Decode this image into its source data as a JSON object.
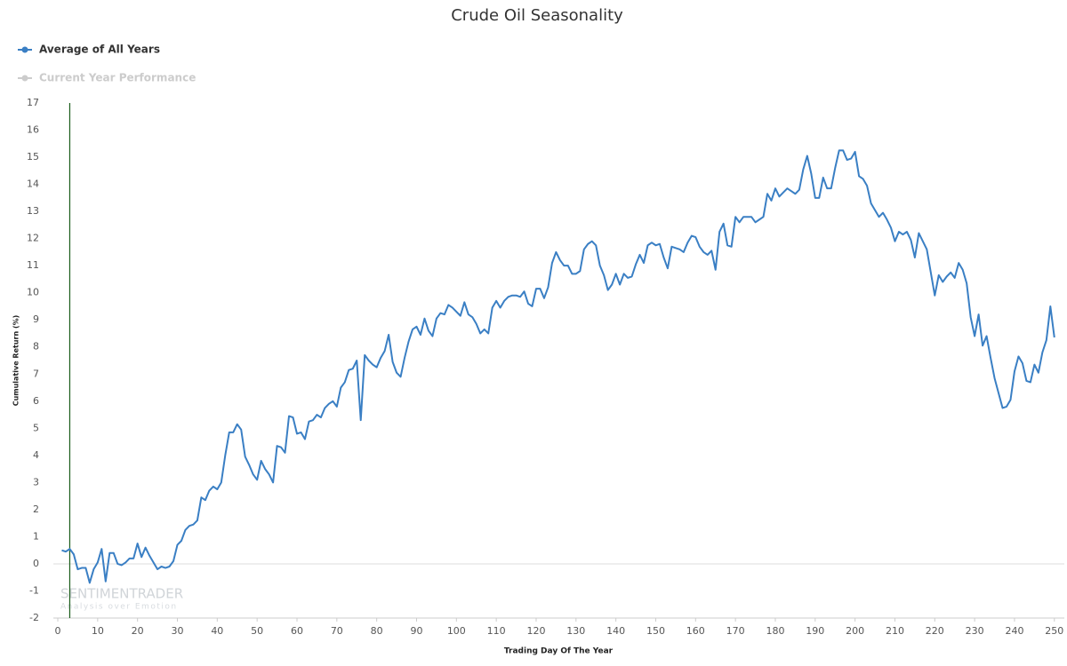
{
  "chart_data": {
    "type": "line",
    "title": "Crude Oil Seasonality",
    "xlabel": "Trading Day Of The Year",
    "ylabel": "Cumulative Return (%)",
    "watermark": "SENTIMENTRADER",
    "watermark_sub": "Analysis over Emotion",
    "legend_position": "top-left",
    "inactive_series": [
      {
        "name": "Current Year Performance",
        "color": "#cccccc"
      }
    ],
    "vline_x": 3,
    "vline_color": "#1a5c1a",
    "xlim": [
      0,
      252.5
    ],
    "ylim": [
      -2,
      17
    ],
    "xticks": [
      0,
      10,
      20,
      30,
      40,
      50,
      60,
      70,
      80,
      90,
      100,
      110,
      120,
      130,
      140,
      150,
      160,
      170,
      180,
      190,
      200,
      210,
      220,
      230,
      240,
      250
    ],
    "yticks": [
      -2,
      -1,
      0,
      1,
      2,
      3,
      4,
      5,
      6,
      7,
      8,
      9,
      10,
      11,
      12,
      13,
      14,
      15,
      16,
      17
    ],
    "x": [
      1,
      2,
      3,
      4,
      5,
      6,
      7,
      8,
      9,
      10,
      11,
      12,
      13,
      14,
      15,
      16,
      17,
      18,
      19,
      20,
      21,
      22,
      23,
      24,
      25,
      26,
      27,
      28,
      29,
      30,
      31,
      32,
      33,
      34,
      35,
      36,
      37,
      38,
      39,
      40,
      41,
      42,
      43,
      44,
      45,
      46,
      47,
      48,
      49,
      50,
      51,
      52,
      53,
      54,
      55,
      56,
      57,
      58,
      59,
      60,
      61,
      62,
      63,
      64,
      65,
      66,
      67,
      68,
      69,
      70,
      71,
      72,
      73,
      74,
      75,
      76,
      77,
      78,
      79,
      80,
      81,
      82,
      83,
      84,
      85,
      86,
      87,
      88,
      89,
      90,
      91,
      92,
      93,
      94,
      95,
      96,
      97,
      98,
      99,
      100,
      101,
      102,
      103,
      104,
      105,
      106,
      107,
      108,
      109,
      110,
      111,
      112,
      113,
      114,
      115,
      116,
      117,
      118,
      119,
      120,
      121,
      122,
      123,
      124,
      125,
      126,
      127,
      128,
      129,
      130,
      131,
      132,
      133,
      134,
      135,
      136,
      137,
      138,
      139,
      140,
      141,
      142,
      143,
      144,
      145,
      146,
      147,
      148,
      149,
      150,
      151,
      152,
      153,
      154,
      155,
      156,
      157,
      158,
      159,
      160,
      161,
      162,
      163,
      164,
      165,
      166,
      167,
      168,
      169,
      170,
      171,
      172,
      173,
      174,
      175,
      176,
      177,
      178,
      179,
      180,
      181,
      182,
      183,
      184,
      185,
      186,
      187,
      188,
      189,
      190,
      191,
      192,
      193,
      194,
      195,
      196,
      197,
      198,
      199,
      200,
      201,
      202,
      203,
      204,
      205,
      206,
      207,
      208,
      209,
      210,
      211,
      212,
      213,
      214,
      215,
      216,
      217,
      218,
      219,
      220,
      221,
      222,
      223,
      224,
      225,
      226,
      227,
      228,
      229,
      230,
      231,
      232,
      233,
      234,
      235,
      236,
      237,
      238,
      239,
      240,
      241,
      242,
      243,
      244,
      245,
      246,
      247,
      248,
      249,
      250
    ],
    "series": [
      {
        "name": "Average of All Years",
        "color": "#3a7fc4",
        "values": [
          0.5,
          0.45,
          0.55,
          0.35,
          -0.2,
          -0.15,
          -0.15,
          -0.7,
          -0.2,
          0.05,
          0.55,
          -0.65,
          0.4,
          0.4,
          0.0,
          -0.05,
          0.05,
          0.2,
          0.2,
          0.75,
          0.25,
          0.6,
          0.3,
          0.05,
          -0.2,
          -0.1,
          -0.15,
          -0.1,
          0.1,
          0.7,
          0.85,
          1.25,
          1.4,
          1.45,
          1.6,
          2.45,
          2.35,
          2.7,
          2.85,
          2.75,
          3.0,
          4.0,
          4.85,
          4.85,
          5.15,
          4.95,
          3.95,
          3.65,
          3.3,
          3.1,
          3.8,
          3.5,
          3.3,
          3.0,
          4.35,
          4.3,
          4.1,
          5.45,
          5.4,
          4.8,
          4.85,
          4.6,
          5.25,
          5.3,
          5.5,
          5.4,
          5.75,
          5.9,
          6.0,
          5.8,
          6.5,
          6.7,
          7.15,
          7.2,
          7.5,
          5.3,
          7.7,
          7.5,
          7.35,
          7.25,
          7.6,
          7.85,
          8.45,
          7.45,
          7.05,
          6.9,
          7.6,
          8.2,
          8.65,
          8.75,
          8.45,
          9.05,
          8.6,
          8.4,
          9.05,
          9.25,
          9.2,
          9.55,
          9.45,
          9.3,
          9.15,
          9.65,
          9.2,
          9.1,
          8.85,
          8.5,
          8.65,
          8.5,
          9.45,
          9.7,
          9.45,
          9.7,
          9.85,
          9.9,
          9.9,
          9.85,
          10.05,
          9.6,
          9.5,
          10.15,
          10.15,
          9.8,
          10.2,
          11.1,
          11.5,
          11.2,
          11.0,
          11.0,
          10.7,
          10.7,
          10.8,
          11.6,
          11.8,
          11.9,
          11.75,
          11.0,
          10.65,
          10.1,
          10.3,
          10.7,
          10.3,
          10.7,
          10.55,
          10.6,
          11.05,
          11.4,
          11.1,
          11.75,
          11.85,
          11.75,
          11.8,
          11.3,
          10.9,
          11.7,
          11.65,
          11.6,
          11.5,
          11.85,
          12.1,
          12.05,
          11.7,
          11.5,
          11.4,
          11.55,
          10.85,
          12.25,
          12.55,
          11.75,
          11.7,
          12.8,
          12.6,
          12.8,
          12.8,
          12.8,
          12.6,
          12.7,
          12.8,
          13.65,
          13.4,
          13.85,
          13.55,
          13.7,
          13.85,
          13.75,
          13.65,
          13.8,
          14.55,
          15.05,
          14.4,
          13.5,
          13.5,
          14.25,
          13.85,
          13.85,
          14.6,
          15.25,
          15.25,
          14.9,
          14.95,
          15.2,
          14.3,
          14.2,
          13.95,
          13.3,
          13.05,
          12.8,
          12.95,
          12.7,
          12.4,
          11.9,
          12.25,
          12.15,
          12.25,
          11.95,
          11.3,
          12.2,
          11.9,
          11.6,
          10.75,
          9.9,
          10.65,
          10.4,
          10.6,
          10.75,
          10.55,
          11.1,
          10.85,
          10.35,
          9.1,
          8.4,
          9.2,
          8.05,
          8.4,
          7.6,
          6.85,
          6.3,
          5.75,
          5.8,
          6.05,
          7.1,
          7.65,
          7.4,
          6.75,
          6.7,
          7.35,
          7.05,
          7.8,
          8.25,
          9.5,
          8.35
        ]
      }
    ]
  }
}
